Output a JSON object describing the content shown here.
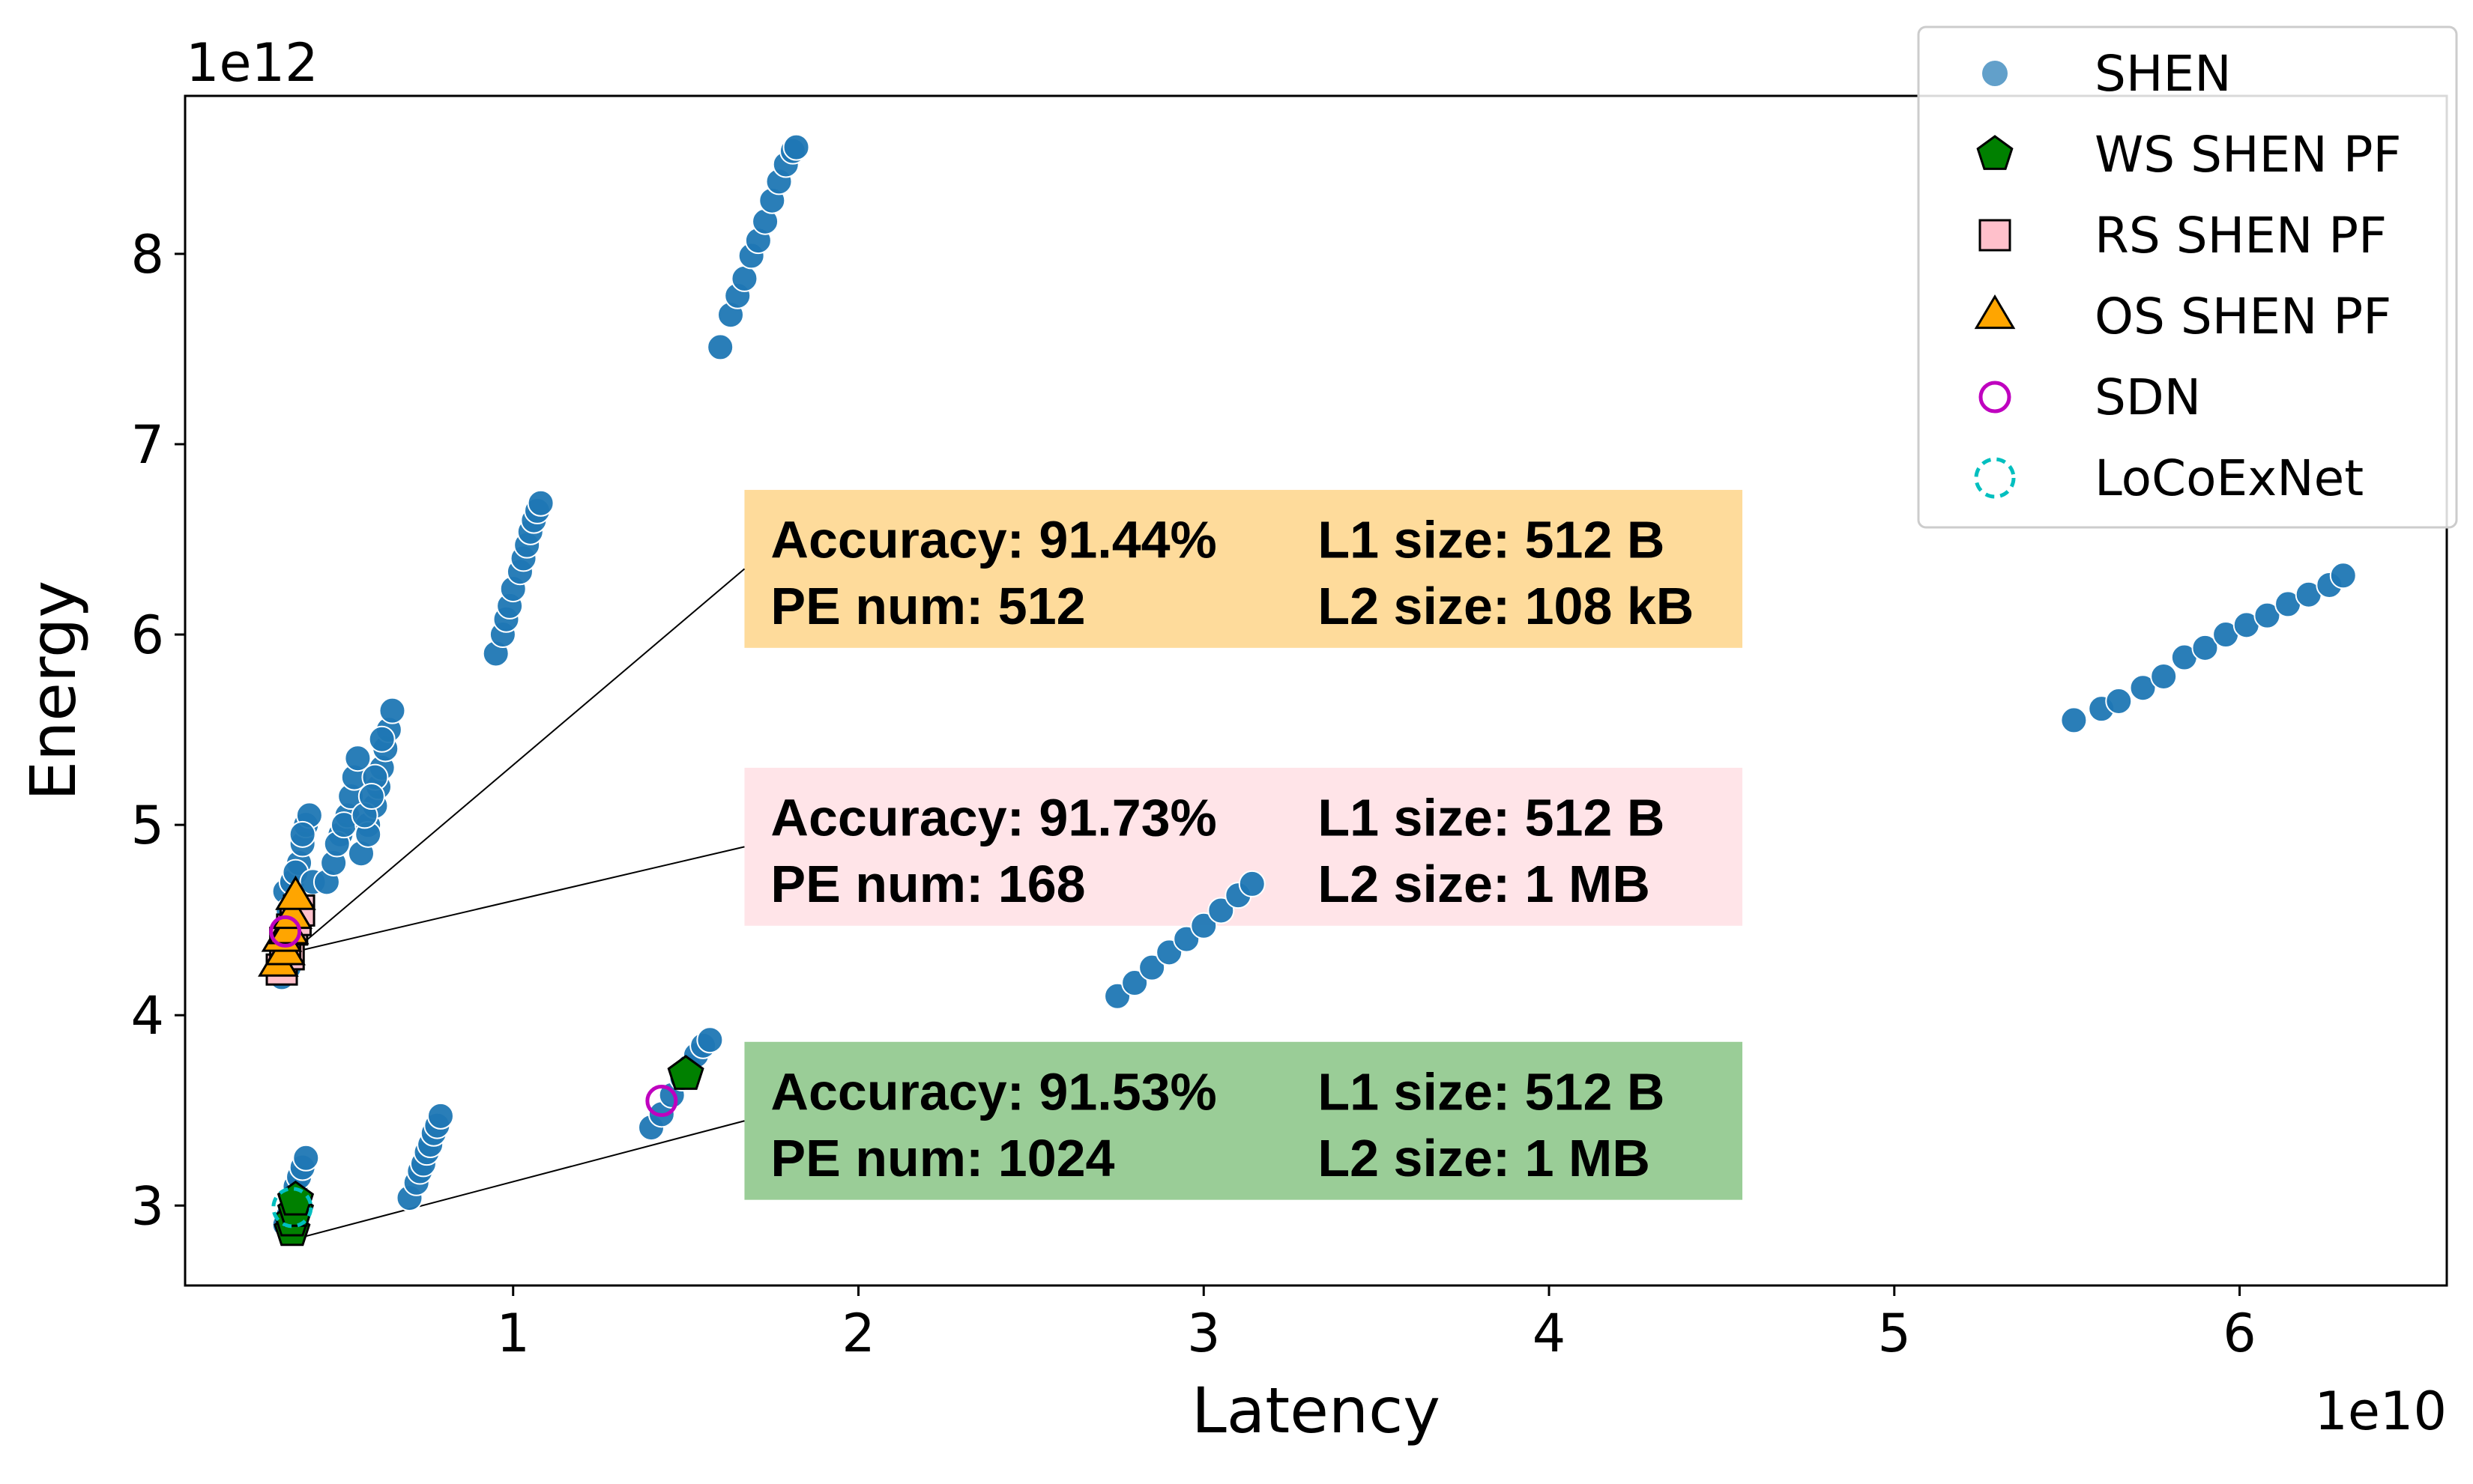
{
  "chart_data": {
    "type": "scatter",
    "title": "",
    "xlabel": "Latency",
    "ylabel": "Energy",
    "x_offset_label": "1e10",
    "y_offset_label": "1e12",
    "xlim": [
      0.05,
      6.6
    ],
    "ylim": [
      2.58,
      8.83
    ],
    "x_ticks": [
      1,
      2,
      3,
      4,
      5,
      6
    ],
    "y_ticks": [
      3,
      4,
      5,
      6,
      7,
      8
    ],
    "x_tick_labels": [
      "1",
      "2",
      "3",
      "4",
      "5",
      "6"
    ],
    "y_tick_labels": [
      "3",
      "4",
      "5",
      "6",
      "7",
      "8"
    ],
    "grid": false,
    "legend_position": "top-right",
    "series": [
      {
        "name": "SHEN",
        "marker": "circle",
        "color": "#1f77b4",
        "points": [
          [
            0.33,
            4.2
          ],
          [
            0.35,
            4.25
          ],
          [
            0.34,
            4.3
          ],
          [
            0.36,
            4.4
          ],
          [
            0.37,
            4.5
          ],
          [
            0.38,
            4.6
          ],
          [
            0.34,
            4.65
          ],
          [
            0.36,
            4.7
          ],
          [
            0.38,
            4.8
          ],
          [
            0.39,
            4.9
          ],
          [
            0.4,
            5.0
          ],
          [
            0.41,
            5.05
          ],
          [
            0.35,
            4.55
          ],
          [
            0.37,
            4.75
          ],
          [
            0.39,
            4.95
          ],
          [
            0.42,
            4.7
          ],
          [
            0.46,
            4.7
          ],
          [
            0.48,
            4.8
          ],
          [
            0.5,
            4.95
          ],
          [
            0.52,
            5.05
          ],
          [
            0.53,
            5.15
          ],
          [
            0.54,
            5.25
          ],
          [
            0.55,
            5.35
          ],
          [
            0.49,
            4.9
          ],
          [
            0.51,
            5.0
          ],
          [
            0.56,
            4.85
          ],
          [
            0.58,
            5.0
          ],
          [
            0.6,
            5.1
          ],
          [
            0.61,
            5.2
          ],
          [
            0.62,
            5.3
          ],
          [
            0.63,
            5.4
          ],
          [
            0.64,
            5.5
          ],
          [
            0.65,
            5.6
          ],
          [
            0.58,
            4.95
          ],
          [
            0.6,
            5.25
          ],
          [
            0.62,
            5.45
          ],
          [
            0.57,
            5.05
          ],
          [
            0.59,
            5.15
          ],
          [
            0.34,
            2.9
          ],
          [
            0.35,
            2.95
          ],
          [
            0.36,
            3.0
          ],
          [
            0.37,
            3.1
          ],
          [
            0.38,
            3.15
          ],
          [
            0.39,
            3.2
          ],
          [
            0.4,
            3.25
          ],
          [
            0.7,
            3.04
          ],
          [
            0.72,
            3.12
          ],
          [
            0.73,
            3.18
          ],
          [
            0.74,
            3.22
          ],
          [
            0.75,
            3.28
          ],
          [
            0.76,
            3.32
          ],
          [
            0.77,
            3.38
          ],
          [
            0.78,
            3.42
          ],
          [
            0.79,
            3.47
          ],
          [
            0.95,
            5.9
          ],
          [
            0.97,
            6.0
          ],
          [
            0.98,
            6.08
          ],
          [
            0.99,
            6.15
          ],
          [
            1.0,
            6.24
          ],
          [
            1.02,
            6.33
          ],
          [
            1.03,
            6.4
          ],
          [
            1.04,
            6.47
          ],
          [
            1.05,
            6.54
          ],
          [
            1.06,
            6.6
          ],
          [
            1.07,
            6.65
          ],
          [
            1.08,
            6.69
          ],
          [
            1.6,
            7.51
          ],
          [
            1.63,
            7.68
          ],
          [
            1.65,
            7.78
          ],
          [
            1.67,
            7.87
          ],
          [
            1.69,
            7.99
          ],
          [
            1.71,
            8.07
          ],
          [
            1.73,
            8.17
          ],
          [
            1.75,
            8.28
          ],
          [
            1.77,
            8.38
          ],
          [
            1.79,
            8.47
          ],
          [
            1.81,
            8.54
          ],
          [
            1.82,
            8.56
          ],
          [
            1.4,
            3.41
          ],
          [
            1.43,
            3.48
          ],
          [
            1.46,
            3.58
          ],
          [
            1.49,
            3.67
          ],
          [
            1.51,
            3.73
          ],
          [
            1.53,
            3.79
          ],
          [
            1.55,
            3.84
          ],
          [
            1.57,
            3.87
          ],
          [
            2.75,
            4.1
          ],
          [
            2.8,
            4.17
          ],
          [
            2.85,
            4.25
          ],
          [
            2.9,
            4.33
          ],
          [
            2.95,
            4.4
          ],
          [
            3.0,
            4.47
          ],
          [
            3.05,
            4.55
          ],
          [
            3.1,
            4.63
          ],
          [
            3.14,
            4.69
          ],
          [
            5.52,
            5.55
          ],
          [
            5.6,
            5.61
          ],
          [
            5.65,
            5.65
          ],
          [
            5.72,
            5.72
          ],
          [
            5.78,
            5.78
          ],
          [
            5.84,
            5.88
          ],
          [
            5.9,
            5.93
          ],
          [
            5.96,
            6.0
          ],
          [
            6.02,
            6.05
          ],
          [
            6.08,
            6.1
          ],
          [
            6.14,
            6.16
          ],
          [
            6.2,
            6.21
          ],
          [
            6.26,
            6.26
          ],
          [
            6.3,
            6.31
          ]
        ]
      },
      {
        "name": "WS SHEN PF",
        "marker": "pentagon",
        "color": "#008000",
        "points": [
          [
            0.36,
            2.87
          ],
          [
            0.36,
            2.92
          ],
          [
            0.37,
            2.97
          ],
          [
            0.37,
            3.03
          ],
          [
            1.5,
            3.69
          ]
        ]
      },
      {
        "name": "RS SHEN PF",
        "marker": "square",
        "color": "#ffc0cb",
        "points": [
          [
            0.33,
            4.24
          ],
          [
            0.35,
            4.32
          ],
          [
            0.34,
            4.38
          ],
          [
            0.36,
            4.45
          ],
          [
            0.37,
            4.5
          ],
          [
            0.38,
            4.55
          ]
        ]
      },
      {
        "name": "OS SHEN PF",
        "marker": "triangle",
        "color": "#ffa500",
        "points": [
          [
            0.32,
            4.27
          ],
          [
            0.34,
            4.33
          ],
          [
            0.33,
            4.4
          ],
          [
            0.35,
            4.44
          ],
          [
            0.36,
            4.52
          ],
          [
            0.37,
            4.62
          ]
        ]
      },
      {
        "name": "SDN",
        "marker": "circle-open",
        "color": "#bf00bf",
        "points": [
          [
            1.43,
            3.55
          ],
          [
            0.34,
            4.44
          ]
        ]
      },
      {
        "name": "LoCoExNet",
        "marker": "circle-dashed",
        "color": "#00bfbf",
        "points": [
          [
            0.36,
            2.99
          ]
        ]
      }
    ],
    "annotations": [
      {
        "accuracy": "Accuracy: 91.44%",
        "pe": "PE num: 512",
        "l1": "L1 size: 512 B",
        "l2": "L2 size: 108 kB",
        "bg": "#fedb9b",
        "box": [
          1.67,
          5.93,
          4.56,
          6.76
        ],
        "point": [
          0.36,
          4.33
        ]
      },
      {
        "accuracy": "Accuracy: 91.73%",
        "pe": "PE num: 168",
        "l1": "L1 size: 512 B",
        "l2": "L2 size: 1 MB",
        "bg": "#ffe4e8",
        "box": [
          1.67,
          4.47,
          4.56,
          5.3
        ],
        "point": [
          0.36,
          4.33
        ]
      },
      {
        "accuracy": "Accuracy: 91.53%",
        "pe": "PE num: 1024",
        "l1": "L1 size: 512 B",
        "l2": "L2 size: 1 MB",
        "bg": "#9acd97",
        "box": [
          1.67,
          3.03,
          4.56,
          3.86
        ],
        "point": [
          0.36,
          2.82
        ]
      }
    ]
  }
}
